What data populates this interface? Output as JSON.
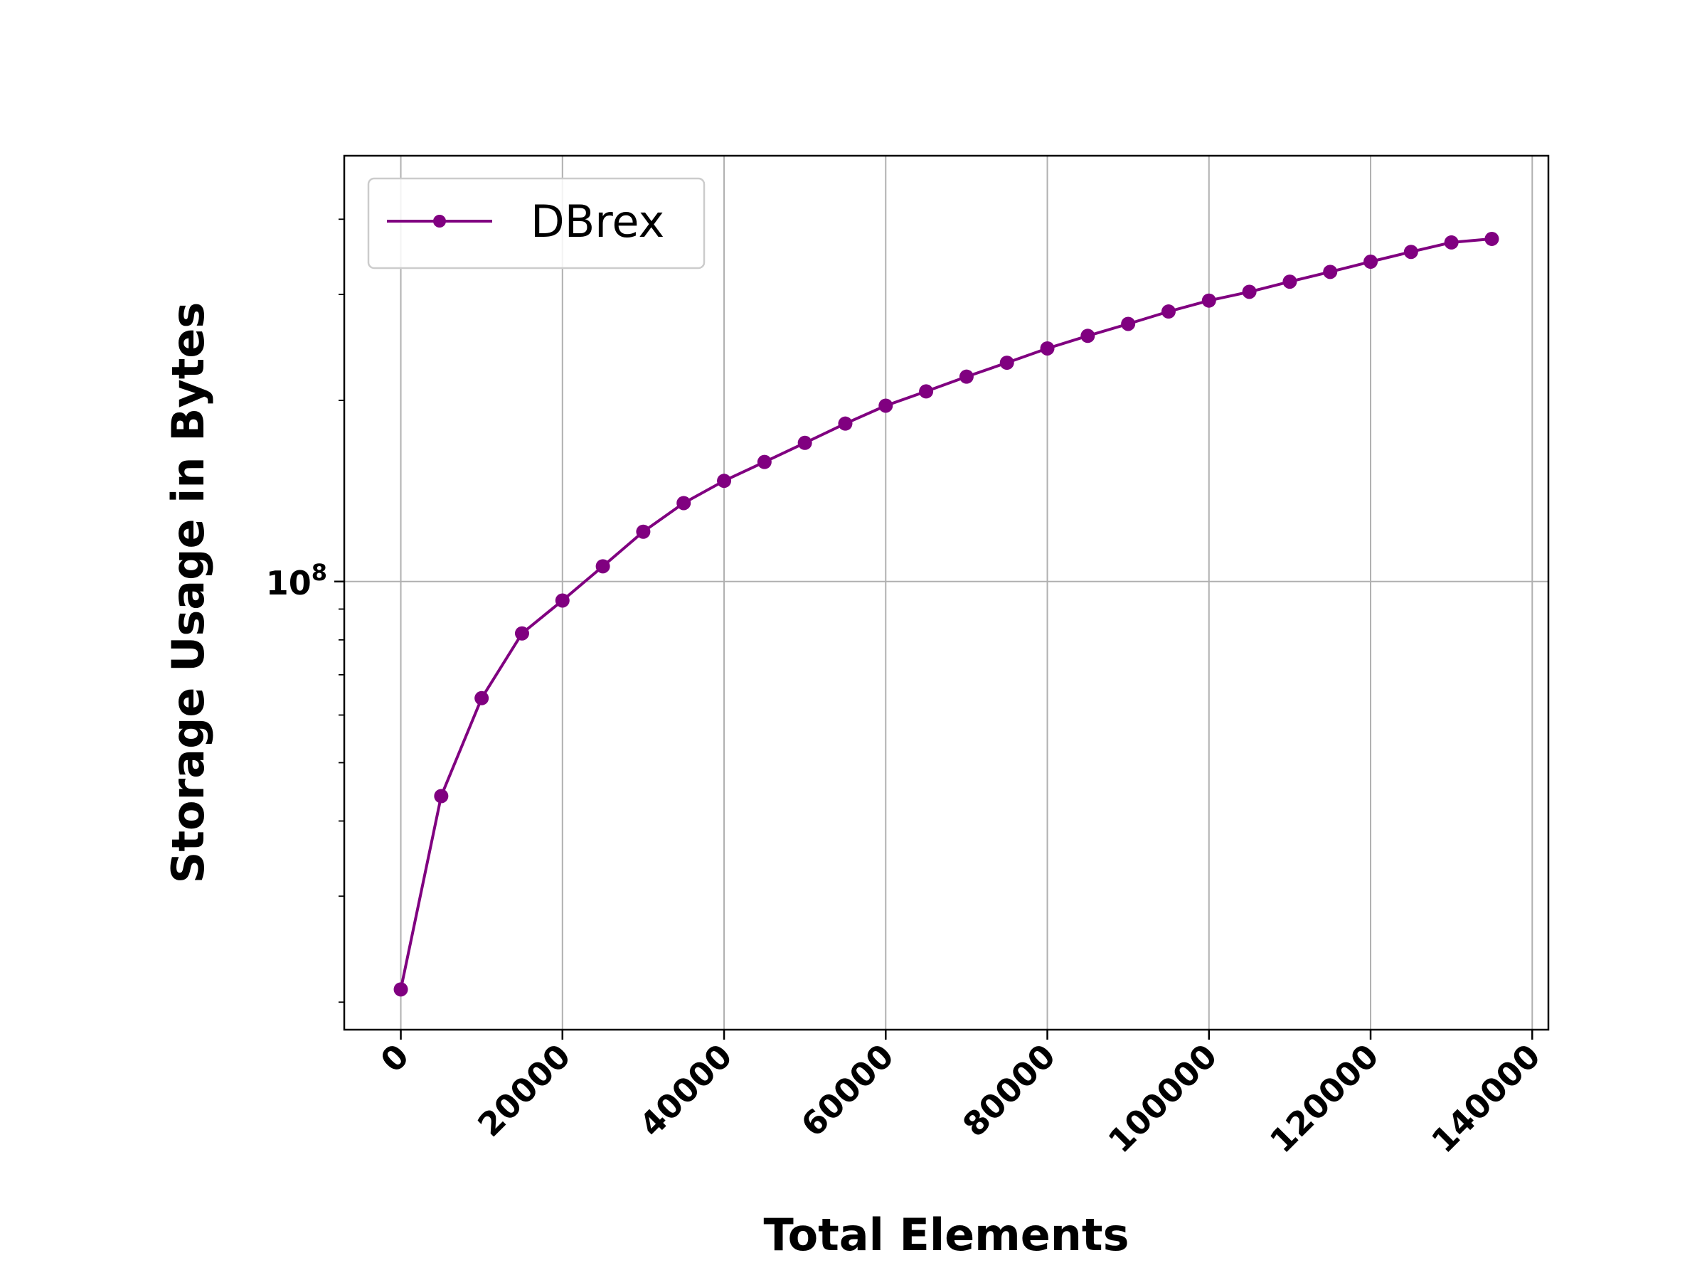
{
  "chart_data": {
    "type": "line",
    "title": "",
    "xlabel": "Total Elements",
    "ylabel": "Storage Usage in Bytes",
    "yscale": "log",
    "xlim": [
      -7000,
      142000
    ],
    "ylim": [
      18000000,
      510000000
    ],
    "x_ticks": [
      0,
      20000,
      40000,
      60000,
      80000,
      100000,
      120000,
      140000
    ],
    "x_tick_labels": [
      "0",
      "20000",
      "40000",
      "60000",
      "80000",
      "100000",
      "120000",
      "140000"
    ],
    "y_major_ticks": [
      100000000
    ],
    "y_tick_labels": [
      {
        "base": "10",
        "exp": "8"
      }
    ],
    "y_minor_ticks": [
      20000000,
      30000000,
      40000000,
      50000000,
      60000000,
      70000000,
      80000000,
      90000000,
      200000000,
      300000000,
      400000000
    ],
    "grid": true,
    "legend_position": "top-left",
    "series": [
      {
        "name": "DBrex",
        "color": "#800080",
        "marker": "circle",
        "x": [
          0,
          5000,
          10000,
          15000,
          20000,
          25000,
          30000,
          35000,
          40000,
          45000,
          50000,
          55000,
          60000,
          65000,
          70000,
          75000,
          80000,
          85000,
          90000,
          95000,
          100000,
          105000,
          110000,
          115000,
          120000,
          125000,
          130000,
          135000
        ],
        "values": [
          21000000,
          44000000,
          64000000,
          82000000,
          93000000,
          106000000,
          121000000,
          135000000,
          147000000,
          158000000,
          170000000,
          183000000,
          196000000,
          207000000,
          219000000,
          231000000,
          244000000,
          256000000,
          268000000,
          281000000,
          293000000,
          303000000,
          315000000,
          327000000,
          340000000,
          353000000,
          366000000,
          371000000
        ]
      }
    ]
  }
}
